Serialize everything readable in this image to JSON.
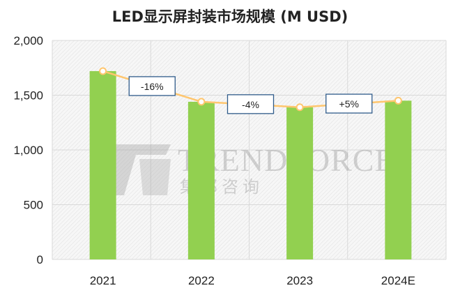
{
  "chart_data": {
    "type": "bar",
    "title": "LED显示屏封装市场规模 (M USD)",
    "categories": [
      "2021",
      "2022",
      "2023",
      "2024E"
    ],
    "values": [
      1720,
      1440,
      1390,
      1450
    ],
    "ylim": [
      0,
      2000
    ],
    "yticks": [
      "0",
      "500",
      "1,000",
      "1,500",
      "2,000"
    ],
    "ytick_values": [
      0,
      500,
      1000,
      1500,
      2000
    ],
    "grid": true,
    "line_overlay": true,
    "growth_labels": [
      "-16%",
      "-4%",
      "+5%"
    ],
    "colors": {
      "bar": "#92d050",
      "line": "#ffc66e",
      "label_border": "#2f5b8a"
    },
    "watermark": "TRENDFORCE 集邦咨询"
  }
}
